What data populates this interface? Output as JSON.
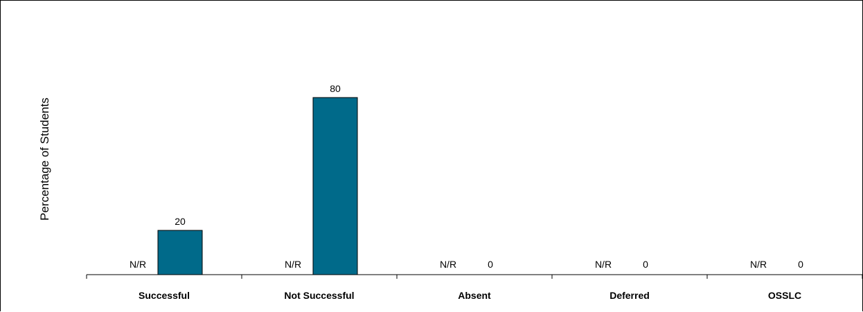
{
  "chart_data": {
    "type": "bar",
    "ylabel": "Percentage of Students",
    "categories": [
      "Successful",
      "Not Successful",
      "Absent",
      "Deferred",
      "OSSLC"
    ],
    "series": [
      {
        "values": [
          null,
          null,
          null,
          null,
          null
        ],
        "labels": [
          "N/R",
          "N/R",
          "N/R",
          "N/R",
          "N/R"
        ]
      },
      {
        "values": [
          20,
          80,
          0,
          0,
          0
        ],
        "labels": [
          "20",
          "80",
          "0",
          "0",
          "0"
        ],
        "color": "#006a8a"
      }
    ],
    "ylim": [
      0,
      100
    ],
    "grid": false,
    "legend": "none"
  }
}
